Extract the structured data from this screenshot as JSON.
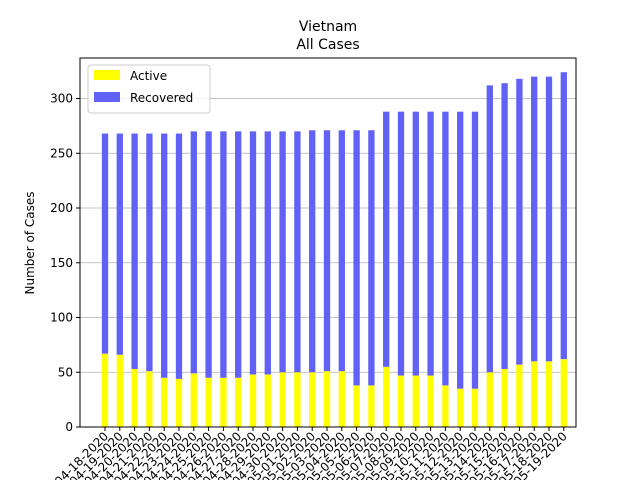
{
  "chart_data": {
    "type": "bar",
    "stacked": true,
    "title": "Vietnam",
    "subtitle": "All Cases",
    "xlabel": "",
    "ylabel": "Number of Cases",
    "ylim": [
      0,
      337
    ],
    "yticks": [
      0,
      50,
      100,
      150,
      200,
      250,
      300
    ],
    "grid": "horizontal",
    "legend_position": "upper-left",
    "categories": [
      "04-18-2020",
      "04-19-2020",
      "04-20-2020",
      "04-21-2020",
      "04-22-2020",
      "04-23-2020",
      "04-24-2020",
      "04-25-2020",
      "04-26-2020",
      "04-27-2020",
      "04-28-2020",
      "04-29-2020",
      "04-30-2020",
      "05-01-2020",
      "05-02-2020",
      "05-03-2020",
      "05-04-2020",
      "05-05-2020",
      "05-06-2020",
      "05-07-2020",
      "05-08-2020",
      "05-09-2020",
      "05-10-2020",
      "05-11-2020",
      "05-12-2020",
      "05-13-2020",
      "05-14-2020",
      "05-15-2020",
      "05-16-2020",
      "05-17-2020",
      "05-18-2020",
      "05-19-2020"
    ],
    "series": [
      {
        "name": "Active",
        "color": "#ffff00",
        "values": [
          67,
          66,
          53,
          51,
          45,
          44,
          49,
          45,
          45,
          45,
          48,
          48,
          50,
          50,
          50,
          51,
          51,
          38,
          38,
          55,
          47,
          47,
          47,
          38,
          35,
          35,
          50,
          53,
          57,
          60,
          60,
          62
        ]
      },
      {
        "name": "Recovered",
        "color": "#6161f5",
        "values": [
          201,
          202,
          215,
          217,
          223,
          224,
          221,
          225,
          225,
          225,
          222,
          222,
          220,
          220,
          221,
          220,
          220,
          233,
          233,
          233,
          241,
          241,
          241,
          250,
          253,
          253,
          262,
          261,
          261,
          260,
          260,
          262
        ]
      }
    ],
    "bar_width_fraction": 0.35
  }
}
